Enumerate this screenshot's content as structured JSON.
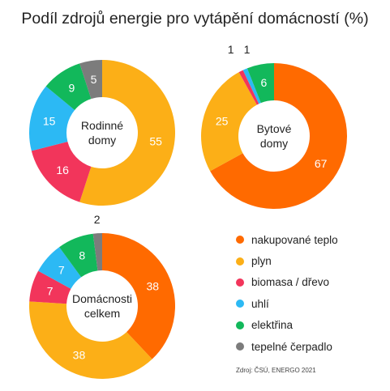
{
  "title": "Podíl zdrojů energie pro vytápění domácností (%)",
  "legend": [
    {
      "label": "nakupované teplo",
      "color": "#FF6A00"
    },
    {
      "label": "plyn",
      "color": "#FCAF17"
    },
    {
      "label": "biomasa / dřevo",
      "color": "#F2355B"
    },
    {
      "label": "uhlí",
      "color": "#2CB9F4"
    },
    {
      "label": "elektřina",
      "color": "#12B85B"
    },
    {
      "label": "tepelné čerpadlo",
      "color": "#7C7C7C"
    }
  ],
  "source": "Zdroj: ČSÚ, ENERGO 2021",
  "chart_data": [
    {
      "type": "pie",
      "center_label": [
        "Rodinné",
        "domy"
      ],
      "categories": [
        "nakupované teplo",
        "plyn",
        "biomasa / dřevo",
        "uhlí",
        "elektřina",
        "tepelné čerpadlo"
      ],
      "values": [
        0,
        55,
        16,
        15,
        9,
        5
      ],
      "data_labels": [
        "",
        "55",
        "16",
        "15",
        "9",
        "5"
      ]
    },
    {
      "type": "pie",
      "center_label": [
        "Bytové",
        "domy"
      ],
      "categories": [
        "nakupované teplo",
        "plyn",
        "biomasa / dřevo",
        "uhlí",
        "elektřina",
        "tepelné čerpadlo"
      ],
      "values": [
        67,
        25,
        1,
        1,
        6,
        0
      ],
      "data_labels": [
        "67",
        "25",
        "1",
        "1",
        "6",
        ""
      ]
    },
    {
      "type": "pie",
      "center_label": [
        "Domácnosti",
        "celkem"
      ],
      "categories": [
        "nakupované teplo",
        "plyn",
        "biomasa / dřevo",
        "uhlí",
        "elektřina",
        "tepelné čerpadlo"
      ],
      "values": [
        38,
        38,
        7,
        7,
        8,
        2
      ],
      "data_labels": [
        "38",
        "38",
        "7",
        "7",
        "8",
        "2"
      ]
    }
  ]
}
